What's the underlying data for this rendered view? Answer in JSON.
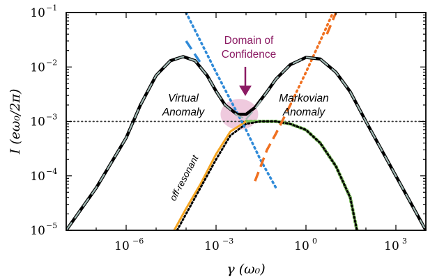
{
  "chart_data": {
    "type": "line",
    "xscale": "log",
    "yscale": "log",
    "xlabel": "γ (ω₀)",
    "ylabel": "I (eω₀/2π)",
    "xlim": [
      1e-08,
      10000.0
    ],
    "ylim": [
      1e-05,
      0.1
    ],
    "x_ticks": [
      {
        "value": 1e-06,
        "base": "10",
        "exp": "−6"
      },
      {
        "value": 0.001,
        "base": "10",
        "exp": "−3"
      },
      {
        "value": 1.0,
        "base": "10",
        "exp": "0"
      },
      {
        "value": 1000.0,
        "base": "10",
        "exp": "3"
      }
    ],
    "y_ticks": [
      {
        "value": 1e-05,
        "base": "10",
        "exp": "−5"
      },
      {
        "value": 0.0001,
        "base": "10",
        "exp": "−4"
      },
      {
        "value": 0.001,
        "base": "10",
        "exp": "−3"
      },
      {
        "value": 0.01,
        "base": "10",
        "exp": "−2"
      },
      {
        "value": 0.1,
        "base": "10",
        "exp": "−1"
      }
    ],
    "reference_line": {
      "y": 0.001,
      "style": "dotted",
      "color": "#333333"
    },
    "series": [
      {
        "id": "exact",
        "color": "#000000",
        "style": "solid",
        "points": [
          [
            1e-08,
            1e-05
          ],
          [
            1e-07,
            6e-05
          ],
          [
            1e-06,
            0.0005
          ],
          [
            3e-06,
            0.002
          ],
          [
            1e-05,
            0.007
          ],
          [
            3e-05,
            0.013
          ],
          [
            8e-05,
            0.0155
          ],
          [
            0.0002,
            0.013
          ],
          [
            0.0005,
            0.007
          ],
          [
            0.001,
            0.0036
          ],
          [
            0.002,
            0.002
          ],
          [
            0.005,
            0.00135
          ],
          [
            0.01,
            0.00135
          ],
          [
            0.02,
            0.0018
          ],
          [
            0.05,
            0.0035
          ],
          [
            0.1,
            0.006
          ],
          [
            0.3,
            0.011
          ],
          [
            1.0,
            0.015
          ],
          [
            3.0,
            0.014
          ],
          [
            10.0,
            0.008
          ],
          [
            30.0,
            0.0035
          ],
          [
            100.0,
            0.001
          ],
          [
            1000.0,
            0.0001
          ],
          [
            10000.0,
            1e-05
          ]
        ]
      },
      {
        "id": "virtual-approx",
        "color": "#9fb7b2",
        "style": "dashed",
        "points": [
          [
            1e-08,
            1e-05
          ],
          [
            1e-07,
            6e-05
          ],
          [
            1e-06,
            0.0005
          ],
          [
            3e-06,
            0.002
          ],
          [
            1e-05,
            0.007
          ],
          [
            3e-05,
            0.013
          ],
          [
            8e-05,
            0.0155
          ],
          [
            0.0002,
            0.013
          ],
          [
            0.0005,
            0.007
          ],
          [
            0.001,
            0.0036
          ],
          [
            0.002,
            0.002
          ],
          [
            0.005,
            0.0013
          ],
          [
            0.01,
            0.0011
          ]
        ]
      },
      {
        "id": "markovian-approx",
        "color": "#9fb7b2",
        "style": "dashed",
        "points": [
          [
            0.01,
            0.0011
          ],
          [
            0.02,
            0.0017
          ],
          [
            0.05,
            0.0035
          ],
          [
            0.1,
            0.006
          ],
          [
            0.3,
            0.011
          ],
          [
            1.0,
            0.015
          ],
          [
            3.0,
            0.014
          ],
          [
            10.0,
            0.008
          ],
          [
            30.0,
            0.0035
          ],
          [
            100.0,
            0.001
          ],
          [
            1000.0,
            0.0001
          ],
          [
            10000.0,
            1e-05
          ]
        ]
      },
      {
        "id": "off-resonant",
        "color": "#f5a623",
        "style": "solid",
        "points": [
          [
            4e-05,
            1e-05
          ],
          [
            0.0001,
            2.5e-05
          ],
          [
            0.0003,
            7e-05
          ],
          [
            0.001,
            0.00025
          ],
          [
            0.003,
            0.00065
          ],
          [
            0.01,
            0.001
          ]
        ]
      },
      {
        "id": "off-resonant-dotted",
        "color": "#000000",
        "style": "dotted",
        "points": [
          [
            5e-05,
            1e-05
          ],
          [
            0.0001,
            2e-05
          ],
          [
            0.0003,
            6e-05
          ],
          [
            0.001,
            0.0002
          ],
          [
            0.003,
            0.00055
          ],
          [
            0.01,
            0.0009
          ],
          [
            0.03,
            0.001
          ],
          [
            0.1,
            0.001
          ],
          [
            0.3,
            0.0009
          ],
          [
            1.0,
            0.0007
          ],
          [
            3.0,
            0.0004
          ],
          [
            10.0,
            0.00015
          ],
          [
            30.0,
            4e-05
          ],
          [
            50.0,
            1e-05
          ]
        ]
      },
      {
        "id": "green-dotted",
        "color": "#7fbf60",
        "style": "dotted-wide",
        "points": [
          [
            0.01,
            0.001
          ],
          [
            0.03,
            0.001
          ],
          [
            0.1,
            0.001
          ],
          [
            0.3,
            0.0009
          ],
          [
            1.0,
            0.0007
          ],
          [
            3.0,
            0.0004
          ],
          [
            10.0,
            0.00015
          ],
          [
            30.0,
            4e-05
          ],
          [
            50.0,
            1e-05
          ]
        ]
      },
      {
        "id": "blue-dashed",
        "color": "#2f8ad8",
        "style": "dashed",
        "points": [
          [
            0.0001,
            0.03
          ],
          [
            0.0003,
            0.012
          ]
        ]
      },
      {
        "id": "blue-dotted",
        "color": "#2f8ad8",
        "style": "dotted",
        "points": [
          [
            0.0001,
            0.1
          ],
          [
            0.0003,
            0.03
          ],
          [
            0.001,
            0.008
          ],
          [
            0.003,
            0.0025
          ],
          [
            0.01,
            0.0007
          ],
          [
            0.03,
            0.0002
          ],
          [
            0.1,
            6e-05
          ]
        ]
      },
      {
        "id": "orange-dashed",
        "color": "#f07020",
        "style": "dashed",
        "points": [
          [
            0.02,
            8e-05
          ],
          [
            0.05,
            0.0003
          ],
          [
            0.1,
            0.0006
          ],
          [
            0.3,
            0.002
          ]
        ]
      },
      {
        "id": "orange-dotted",
        "color": "#f07020",
        "style": "dotted",
        "points": [
          [
            0.3,
            0.002
          ],
          [
            1.0,
            0.008
          ],
          [
            3.0,
            0.03
          ],
          [
            8.0,
            0.1
          ]
        ]
      },
      {
        "id": "orange-dashed-upper",
        "color": "#f07020",
        "style": "dashed",
        "points": [
          [
            5.0,
            0.04
          ],
          [
            10.0,
            0.1
          ]
        ]
      }
    ],
    "annotations": [
      {
        "id": "virtual",
        "lines": [
          "Virtual",
          "Anomaly"
        ]
      },
      {
        "id": "markovian",
        "lines": [
          "Markovian",
          "Anomaly"
        ]
      },
      {
        "id": "domain",
        "lines": [
          "Domain of",
          "Confidence"
        ]
      },
      {
        "id": "offres",
        "lines": [
          "off-resonant"
        ]
      }
    ],
    "confidence_region": {
      "x": 0.006,
      "y": 0.00135,
      "color": "#e9b8d3"
    }
  },
  "colors": {
    "domain_arrow": "#8b1a63",
    "confidence_fill": "#e9b8d3"
  }
}
